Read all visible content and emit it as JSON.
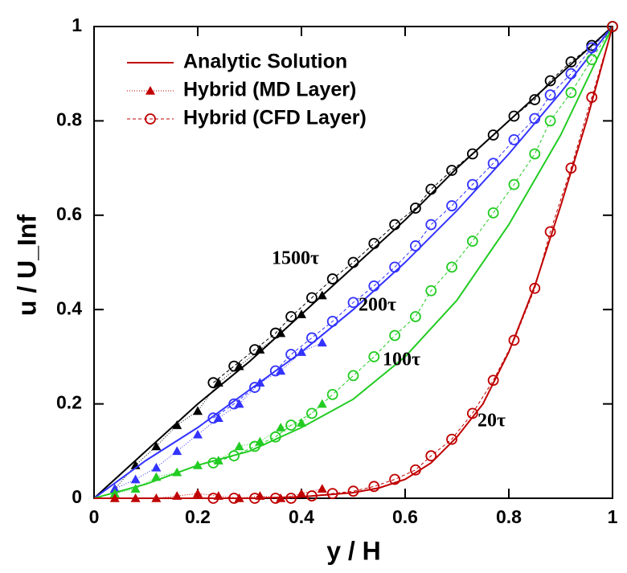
{
  "chart_data": {
    "type": "line",
    "x_label": "y / H",
    "y_label": "u / U_Inf",
    "xlim": [
      0,
      1
    ],
    "ylim": [
      0,
      1
    ],
    "xticks": [
      0,
      0.2,
      0.4,
      0.6,
      0.8,
      1
    ],
    "yticks": [
      0,
      0.2,
      0.4,
      0.6,
      0.8,
      1
    ],
    "legend_color": "#c00000",
    "legend": [
      {
        "label": "Analytic Solution",
        "style": "line"
      },
      {
        "label": "Hybrid (MD Layer)",
        "style": "triangle"
      },
      {
        "label": "Hybrid (CFD Layer)",
        "style": "circle"
      }
    ],
    "curves": [
      {
        "label": "1500τ",
        "color": "#000000",
        "analytic": {
          "x": [
            0,
            0.1,
            0.2,
            0.3,
            0.4,
            0.5,
            0.6,
            0.7,
            0.8,
            0.9,
            1
          ],
          "values": [
            0,
            0.1,
            0.2,
            0.29,
            0.39,
            0.49,
            0.59,
            0.7,
            0.8,
            0.9,
            1
          ]
        },
        "md": {
          "x": [
            0.04,
            0.08,
            0.12,
            0.16,
            0.2,
            0.24,
            0.28,
            0.32,
            0.36,
            0.4,
            0.44
          ],
          "values": [
            0.02,
            0.07,
            0.11,
            0.155,
            0.185,
            0.245,
            0.28,
            0.315,
            0.35,
            0.39,
            0.43
          ]
        },
        "cfd": {
          "x": [
            0.23,
            0.27,
            0.31,
            0.35,
            0.38,
            0.42,
            0.46,
            0.5,
            0.54,
            0.58,
            0.62,
            0.65,
            0.69,
            0.73,
            0.77,
            0.81,
            0.85,
            0.88,
            0.92,
            0.96,
            1
          ],
          "values": [
            0.245,
            0.28,
            0.315,
            0.35,
            0.385,
            0.425,
            0.465,
            0.5,
            0.54,
            0.58,
            0.615,
            0.655,
            0.695,
            0.73,
            0.77,
            0.81,
            0.845,
            0.885,
            0.925,
            0.96,
            1
          ]
        }
      },
      {
        "label": "200τ",
        "color": "#3333ff",
        "analytic": {
          "x": [
            0,
            0.1,
            0.2,
            0.3,
            0.4,
            0.5,
            0.6,
            0.7,
            0.8,
            0.9,
            1
          ],
          "values": [
            0,
            0.08,
            0.15,
            0.23,
            0.31,
            0.4,
            0.5,
            0.61,
            0.73,
            0.86,
            1
          ]
        },
        "md": {
          "x": [
            0.04,
            0.08,
            0.12,
            0.16,
            0.2,
            0.24,
            0.28,
            0.32,
            0.36,
            0.4,
            0.44
          ],
          "values": [
            0.02,
            0.04,
            0.065,
            0.1,
            0.135,
            0.17,
            0.2,
            0.245,
            0.27,
            0.31,
            0.33
          ]
        },
        "cfd": {
          "x": [
            0.23,
            0.27,
            0.31,
            0.35,
            0.38,
            0.42,
            0.46,
            0.5,
            0.54,
            0.58,
            0.62,
            0.65,
            0.69,
            0.73,
            0.77,
            0.81,
            0.85,
            0.88,
            0.92,
            0.96,
            1
          ],
          "values": [
            0.17,
            0.2,
            0.235,
            0.27,
            0.305,
            0.34,
            0.375,
            0.415,
            0.45,
            0.49,
            0.535,
            0.58,
            0.62,
            0.665,
            0.71,
            0.76,
            0.805,
            0.855,
            0.9,
            0.955,
            1
          ]
        }
      },
      {
        "label": "100τ",
        "color": "#22cc22",
        "analytic": {
          "x": [
            0,
            0.1,
            0.2,
            0.3,
            0.4,
            0.5,
            0.6,
            0.7,
            0.8,
            0.9,
            1
          ],
          "values": [
            0,
            0.03,
            0.07,
            0.1,
            0.15,
            0.21,
            0.3,
            0.42,
            0.58,
            0.77,
            1
          ]
        },
        "md": {
          "x": [
            0.04,
            0.08,
            0.12,
            0.16,
            0.2,
            0.24,
            0.28,
            0.32,
            0.36,
            0.4,
            0.44
          ],
          "values": [
            0.01,
            0.02,
            0.045,
            0.055,
            0.07,
            0.08,
            0.11,
            0.12,
            0.15,
            0.16,
            0.2
          ]
        },
        "cfd": {
          "x": [
            0.23,
            0.27,
            0.31,
            0.35,
            0.38,
            0.42,
            0.46,
            0.5,
            0.54,
            0.58,
            0.62,
            0.65,
            0.69,
            0.73,
            0.77,
            0.81,
            0.85,
            0.88,
            0.92,
            0.96,
            1
          ],
          "values": [
            0.075,
            0.09,
            0.11,
            0.13,
            0.155,
            0.18,
            0.22,
            0.26,
            0.3,
            0.345,
            0.385,
            0.44,
            0.49,
            0.545,
            0.605,
            0.665,
            0.73,
            0.8,
            0.86,
            0.93,
            1
          ]
        }
      },
      {
        "label": "20τ",
        "color": "#c00000",
        "analytic": {
          "x": [
            0,
            0.1,
            0.2,
            0.3,
            0.4,
            0.5,
            0.55,
            0.6,
            0.65,
            0.7,
            0.75,
            0.8,
            0.85,
            0.9,
            0.95,
            1
          ],
          "values": [
            0,
            0,
            0,
            0,
            0.003,
            0.012,
            0.022,
            0.04,
            0.075,
            0.13,
            0.2,
            0.31,
            0.45,
            0.62,
            0.8,
            1
          ]
        },
        "md": {
          "x": [
            0.04,
            0.08,
            0.12,
            0.16,
            0.2,
            0.24,
            0.28,
            0.32,
            0.36,
            0.4,
            0.44
          ],
          "values": [
            0,
            0,
            0,
            0.005,
            0.01,
            0.005,
            0,
            0.005,
            0,
            0.01,
            0.02
          ]
        },
        "cfd": {
          "x": [
            0.23,
            0.27,
            0.31,
            0.35,
            0.38,
            0.42,
            0.46,
            0.5,
            0.54,
            0.58,
            0.62,
            0.65,
            0.69,
            0.73,
            0.77,
            0.81,
            0.85,
            0.88,
            0.92,
            0.96,
            1
          ],
          "values": [
            0,
            0,
            0,
            0,
            0,
            0.005,
            0.01,
            0.015,
            0.025,
            0.04,
            0.06,
            0.09,
            0.125,
            0.18,
            0.25,
            0.335,
            0.445,
            0.565,
            0.7,
            0.85,
            1
          ]
        }
      }
    ]
  }
}
